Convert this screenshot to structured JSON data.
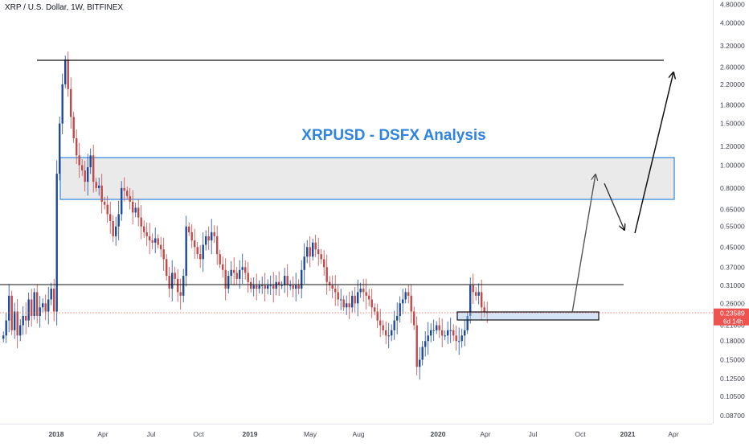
{
  "header": {
    "symbol_title": "XRP / U.S. Dollar, 1W, BITFINEX"
  },
  "annotation": {
    "headline": "XRPUSD - DSFX Analysis"
  },
  "price_axis": {
    "labels": [
      "4.80000",
      "4.00000",
      "3.20000",
      "2.60000",
      "2.20000",
      "1.80000",
      "1.50000",
      "1.20000",
      "1.00000",
      "0.80000",
      "0.65000",
      "0.55000",
      "0.45000",
      "0.37000",
      "0.31000",
      "0.26000",
      "0.21000",
      "0.18000",
      "0.15000",
      "0.12500",
      "0.10500",
      "0.08700"
    ],
    "current_price": "0.23589",
    "countdown": "6d 14h"
  },
  "time_axis": {
    "labels": [
      "2018",
      "Apr",
      "Jul",
      "Oct",
      "2019",
      "May",
      "Aug",
      "2020",
      "Apr",
      "Jul",
      "Oct",
      "2021",
      "Apr"
    ]
  },
  "colors": {
    "up": "#1e4a9c",
    "down": "#c24949",
    "accent": "#2f84e0",
    "price_tag": "#ef5350"
  },
  "chart_data": {
    "type": "candlestick",
    "title": "XRP / U.S. Dollar, 1W, BITFINEX",
    "y_scale": "log",
    "ylim": [
      0.08,
      5.2
    ],
    "x_ticks": [
      "2018",
      "Apr",
      "Jul",
      "Oct",
      "2019",
      "May",
      "Aug",
      "2020",
      "Apr",
      "Jul",
      "Oct",
      "2021",
      "Apr"
    ],
    "closes": [
      0.19,
      0.22,
      0.28,
      0.2,
      0.24,
      0.19,
      0.21,
      0.23,
      0.22,
      0.27,
      0.23,
      0.29,
      0.23,
      0.25,
      0.26,
      0.24,
      0.27,
      0.3,
      0.24,
      0.92,
      1.5,
      2.2,
      2.8,
      2.1,
      1.6,
      1.3,
      1.1,
      1.0,
      0.95,
      0.85,
      0.98,
      1.1,
      0.85,
      0.8,
      0.82,
      0.7,
      0.68,
      0.62,
      0.58,
      0.5,
      0.55,
      0.62,
      0.8,
      0.78,
      0.74,
      0.7,
      0.63,
      0.66,
      0.6,
      0.55,
      0.52,
      0.5,
      0.48,
      0.47,
      0.49,
      0.46,
      0.44,
      0.4,
      0.34,
      0.3,
      0.35,
      0.33,
      0.29,
      0.28,
      0.34,
      0.55,
      0.52,
      0.48,
      0.45,
      0.42,
      0.4,
      0.46,
      0.5,
      0.48,
      0.52,
      0.5,
      0.42,
      0.38,
      0.36,
      0.3,
      0.34,
      0.36,
      0.35,
      0.33,
      0.36,
      0.37,
      0.35,
      0.32,
      0.3,
      0.31,
      0.3,
      0.31,
      0.31,
      0.3,
      0.31,
      0.31,
      0.3,
      0.32,
      0.31,
      0.31,
      0.34,
      0.31,
      0.31,
      0.3,
      0.31,
      0.3,
      0.36,
      0.41,
      0.45,
      0.41,
      0.47,
      0.44,
      0.42,
      0.4,
      0.37,
      0.32,
      0.31,
      0.3,
      0.29,
      0.27,
      0.27,
      0.25,
      0.26,
      0.25,
      0.28,
      0.26,
      0.29,
      0.3,
      0.29,
      0.28,
      0.27,
      0.25,
      0.24,
      0.22,
      0.21,
      0.2,
      0.19,
      0.19,
      0.2,
      0.22,
      0.23,
      0.26,
      0.27,
      0.29,
      0.28,
      0.24,
      0.21,
      0.14,
      0.15,
      0.17,
      0.18,
      0.19,
      0.2,
      0.2,
      0.21,
      0.2,
      0.19,
      0.19,
      0.2,
      0.2,
      0.19,
      0.18,
      0.18,
      0.19,
      0.2,
      0.23,
      0.31,
      0.29,
      0.28,
      0.29,
      0.25,
      0.24,
      0.2359
    ]
  }
}
